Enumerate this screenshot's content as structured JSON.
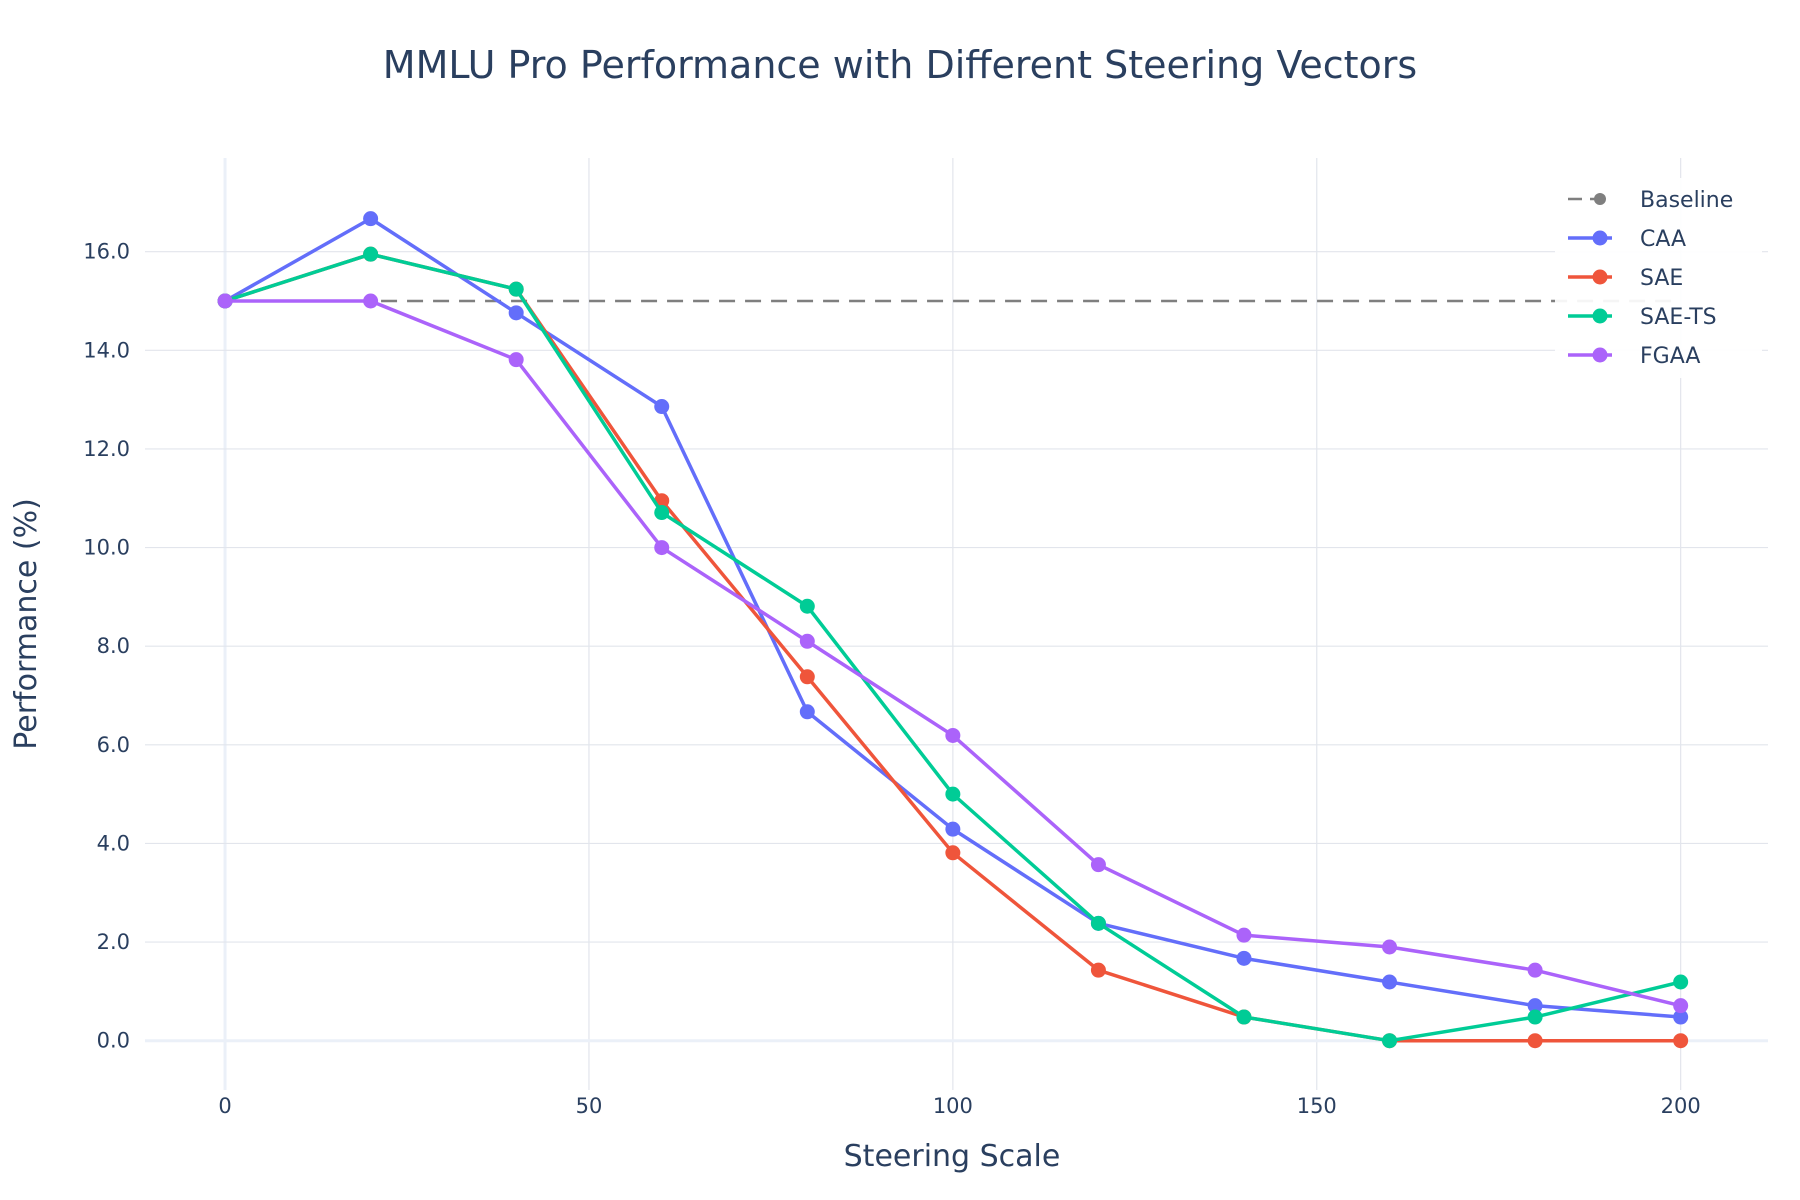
{
  "chart_data": {
    "type": "line",
    "title": "MMLU Pro Performance with Different Steering Vectors",
    "xlabel": "Steering Scale",
    "ylabel": "Performance (%)",
    "xlim": [
      -11,
      212
    ],
    "ylim": [
      -1.0,
      17.9
    ],
    "xticks": [
      0,
      50,
      100,
      150,
      200
    ],
    "xtick_labels": [
      "0",
      "50",
      "100",
      "150",
      "200"
    ],
    "yticks": [
      0,
      2,
      4,
      6,
      8,
      10,
      12,
      14,
      16
    ],
    "ytick_labels": [
      "0.0",
      "2.0",
      "4.0",
      "6.0",
      "8.0",
      "10.0",
      "12.0",
      "14.0",
      "16.0"
    ],
    "grid": true,
    "legend_position": "top-right",
    "x": [
      0,
      20,
      40,
      60,
      80,
      100,
      120,
      140,
      160,
      180,
      200
    ],
    "series": [
      {
        "name": "Baseline",
        "color": "#7f7f7f",
        "dash": "dashed",
        "values": [
          15.0,
          15.0,
          15.0,
          15.0,
          15.0,
          15.0,
          15.0,
          15.0,
          15.0,
          15.0,
          15.0
        ]
      },
      {
        "name": "CAA",
        "color": "#636efa",
        "values": [
          15.0,
          16.67,
          14.76,
          12.86,
          6.67,
          4.29,
          2.38,
          1.67,
          1.19,
          0.71,
          0.48
        ]
      },
      {
        "name": "SAE",
        "color": "#ef553b",
        "values": [
          15.0,
          15.95,
          15.24,
          10.95,
          7.38,
          3.81,
          1.43,
          0.48,
          0.0,
          0.0,
          0.0
        ]
      },
      {
        "name": "SAE-TS",
        "color": "#00cc96",
        "values": [
          15.0,
          15.95,
          15.24,
          10.71,
          8.81,
          5.0,
          2.38,
          0.48,
          0.0,
          0.48,
          1.19
        ]
      },
      {
        "name": "FGAA",
        "color": "#ab63fa",
        "values": [
          15.0,
          15.0,
          13.81,
          10.0,
          8.1,
          6.19,
          3.57,
          2.14,
          1.9,
          1.43,
          0.71
        ]
      }
    ]
  }
}
